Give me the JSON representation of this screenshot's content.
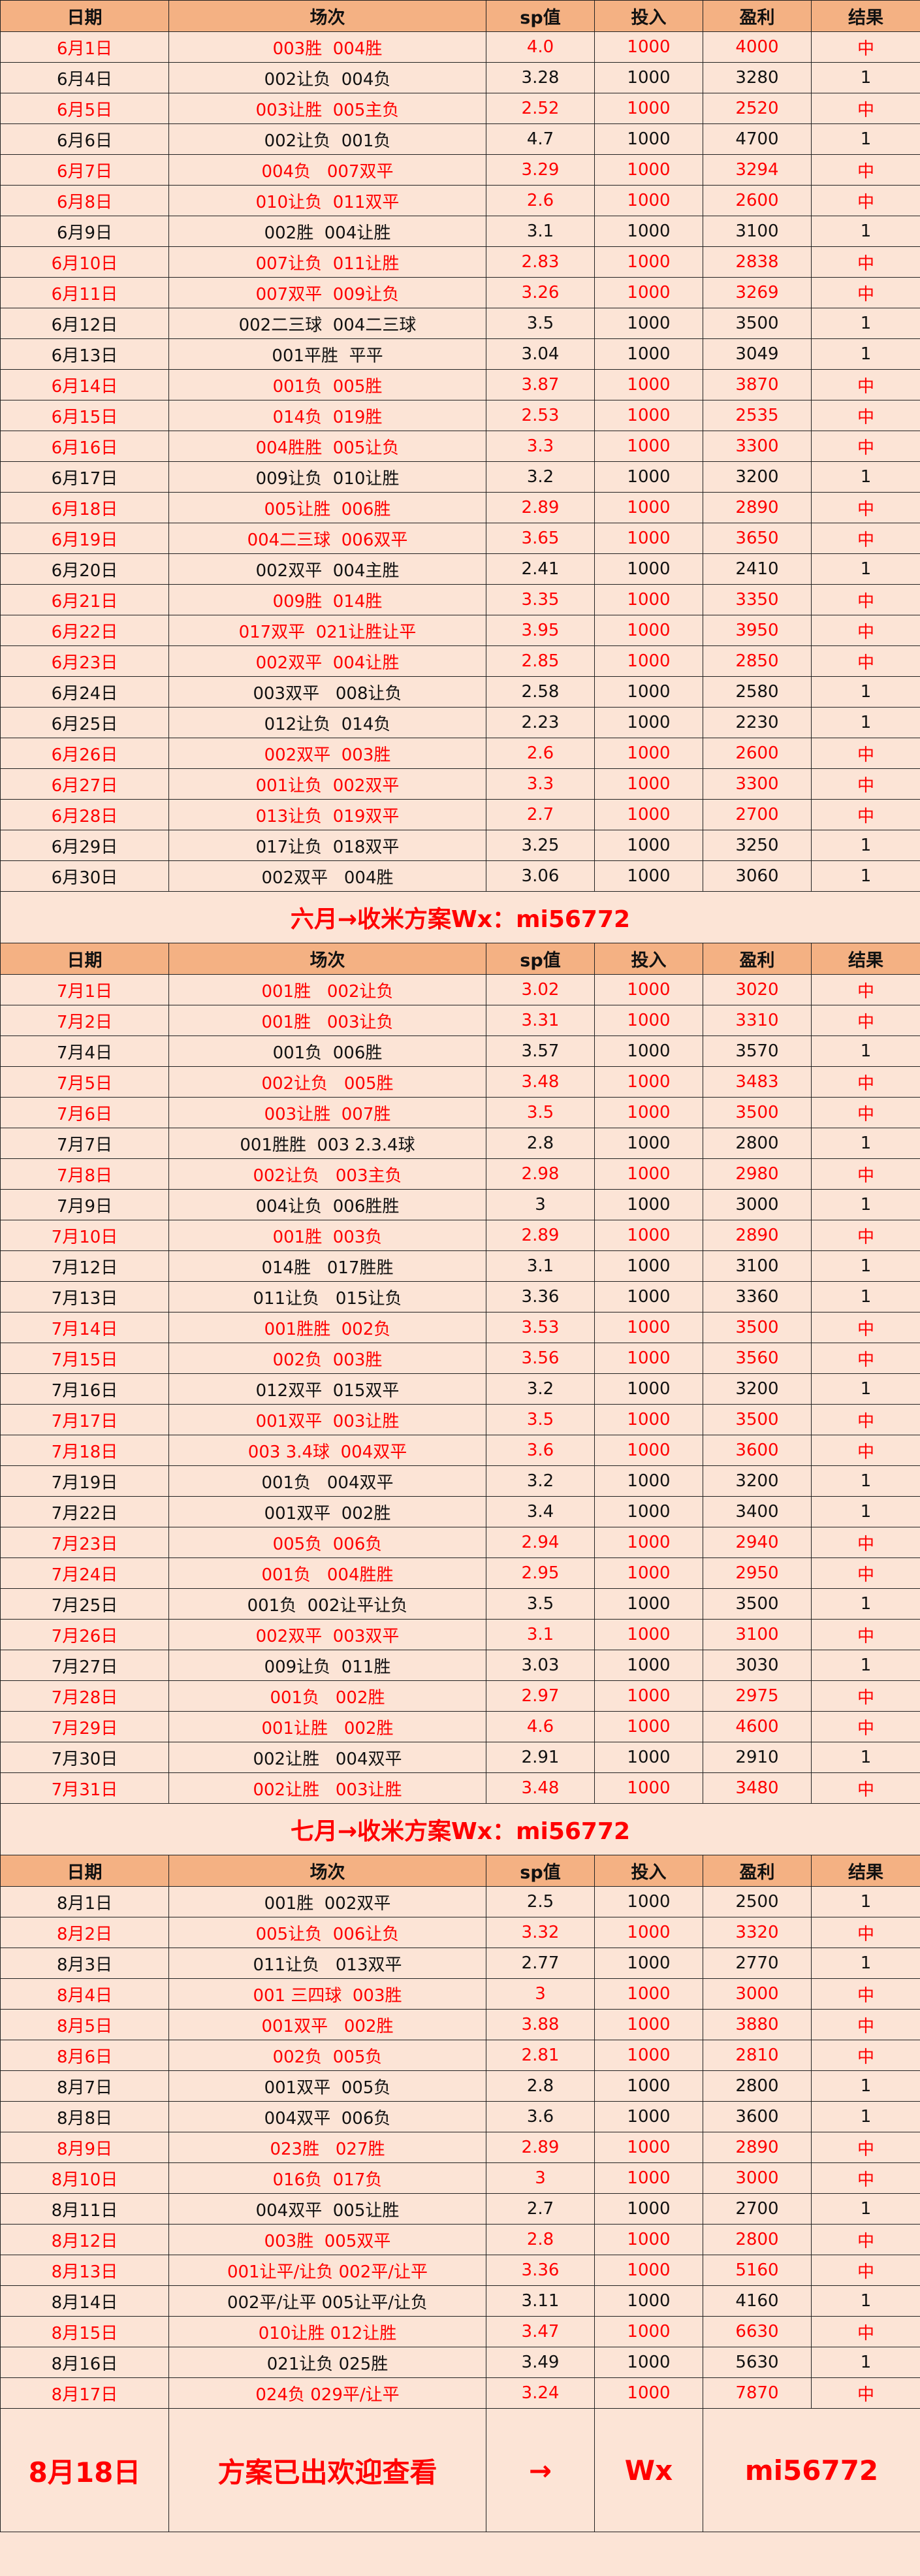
{
  "headers": [
    "日期",
    "场次",
    "sp值",
    "投入",
    "盈利",
    "结果"
  ],
  "colors": {
    "header_bg": "#f4b183",
    "body_bg": "#fce4d6",
    "hit_text": "#ff0000"
  },
  "sections": [
    {
      "rows": [
        [
          "6月1日",
          "003胜  004胜",
          "4.0",
          "1000",
          "4000",
          "中"
        ],
        [
          "6月4日",
          "002让负  004负",
          "3.28",
          "1000",
          "3280",
          "1"
        ],
        [
          "6月5日",
          "003让胜  005主负",
          "2.52",
          "1000",
          "2520",
          "中"
        ],
        [
          "6月6日",
          "002让负  001负",
          "4.7",
          "1000",
          "4700",
          "1"
        ],
        [
          "6月7日",
          "004负   007双平",
          "3.29",
          "1000",
          "3294",
          "中"
        ],
        [
          "6月8日",
          "010让负  011双平",
          "2.6",
          "1000",
          "2600",
          "中"
        ],
        [
          "6月9日",
          "002胜  004让胜",
          "3.1",
          "1000",
          "3100",
          "1"
        ],
        [
          "6月10日",
          "007让负  011让胜",
          "2.83",
          "1000",
          "2838",
          "中"
        ],
        [
          "6月11日",
          "007双平  009让负",
          "3.26",
          "1000",
          "3269",
          "中"
        ],
        [
          "6月12日",
          "002二三球  004二三球",
          "3.5",
          "1000",
          "3500",
          "1"
        ],
        [
          "6月13日",
          "001平胜  平平",
          "3.04",
          "1000",
          "3049",
          "1"
        ],
        [
          "6月14日",
          "001负  005胜",
          "3.87",
          "1000",
          "3870",
          "中"
        ],
        [
          "6月15日",
          "014负  019胜",
          "2.53",
          "1000",
          "2535",
          "中"
        ],
        [
          "6月16日",
          "004胜胜  005让负",
          "3.3",
          "1000",
          "3300",
          "中"
        ],
        [
          "6月17日",
          "009让负  010让胜",
          "3.2",
          "1000",
          "3200",
          "1"
        ],
        [
          "6月18日",
          "005让胜  006胜",
          "2.89",
          "1000",
          "2890",
          "中"
        ],
        [
          "6月19日",
          "004二三球  006双平",
          "3.65",
          "1000",
          "3650",
          "中"
        ],
        [
          "6月20日",
          "002双平  004主胜",
          "2.41",
          "1000",
          "2410",
          "1"
        ],
        [
          "6月21日",
          "009胜  014胜",
          "3.35",
          "1000",
          "3350",
          "中"
        ],
        [
          "6月22日",
          "017双平  021让胜让平",
          "3.95",
          "1000",
          "3950",
          "中"
        ],
        [
          "6月23日",
          "002双平  004让胜",
          "2.85",
          "1000",
          "2850",
          "中"
        ],
        [
          "6月24日",
          "003双平   008让负",
          "2.58",
          "1000",
          "2580",
          "1"
        ],
        [
          "6月25日",
          "012让负  014负",
          "2.23",
          "1000",
          "2230",
          "1"
        ],
        [
          "6月26日",
          "002双平  003胜",
          "2.6",
          "1000",
          "2600",
          "中"
        ],
        [
          "6月27日",
          "001让负  002双平",
          "3.3",
          "1000",
          "3300",
          "中"
        ],
        [
          "6月28日",
          "013让负  019双平",
          "2.7",
          "1000",
          "2700",
          "中"
        ],
        [
          "6月29日",
          "017让负  018双平",
          "3.25",
          "1000",
          "3250",
          "1"
        ],
        [
          "6月30日",
          "002双平   004胜",
          "3.06",
          "1000",
          "3060",
          "1"
        ]
      ],
      "banner": "六月→收米方案Wx：mi56772"
    },
    {
      "rows": [
        [
          "7月1日",
          "001胜   002让负",
          "3.02",
          "1000",
          "3020",
          "中"
        ],
        [
          "7月2日",
          "001胜   003让负",
          "3.31",
          "1000",
          "3310",
          "中"
        ],
        [
          "7月4日",
          "001负  006胜",
          "3.57",
          "1000",
          "3570",
          "1"
        ],
        [
          "7月5日",
          "002让负   005胜",
          "3.48",
          "1000",
          "3483",
          "中"
        ],
        [
          "7月6日",
          "003让胜  007胜",
          "3.5",
          "1000",
          "3500",
          "中"
        ],
        [
          "7月7日",
          "001胜胜  003 2.3.4球",
          "2.8",
          "1000",
          "2800",
          "1"
        ],
        [
          "7月8日",
          "002让负   003主负",
          "2.98",
          "1000",
          "2980",
          "中"
        ],
        [
          "7月9日",
          "004让负  006胜胜",
          "3",
          "1000",
          "3000",
          "1"
        ],
        [
          "7月10日",
          "001胜  003负",
          "2.89",
          "1000",
          "2890",
          "中"
        ],
        [
          "7月12日",
          "014胜   017胜胜",
          "3.1",
          "1000",
          "3100",
          "1"
        ],
        [
          "7月13日",
          "011让负   015让负",
          "3.36",
          "1000",
          "3360",
          "1"
        ],
        [
          "7月14日",
          "001胜胜  002负",
          "3.53",
          "1000",
          "3500",
          "中"
        ],
        [
          "7月15日",
          "002负  003胜",
          "3.56",
          "1000",
          "3560",
          "中"
        ],
        [
          "7月16日",
          "012双平  015双平",
          "3.2",
          "1000",
          "3200",
          "1"
        ],
        [
          "7月17日",
          "001双平  003让胜",
          "3.5",
          "1000",
          "3500",
          "中"
        ],
        [
          "7月18日",
          "003 3.4球  004双平",
          "3.6",
          "1000",
          "3600",
          "中"
        ],
        [
          "7月19日",
          "001负   004双平",
          "3.2",
          "1000",
          "3200",
          "1"
        ],
        [
          "7月22日",
          "001双平  002胜",
          "3.4",
          "1000",
          "3400",
          "1"
        ],
        [
          "7月23日",
          "005负  006负",
          "2.94",
          "1000",
          "2940",
          "中"
        ],
        [
          "7月24日",
          "001负   004胜胜",
          "2.95",
          "1000",
          "2950",
          "中"
        ],
        [
          "7月25日",
          "001负  002让平让负",
          "3.5",
          "1000",
          "3500",
          "1"
        ],
        [
          "7月26日",
          "002双平  003双平",
          "3.1",
          "1000",
          "3100",
          "中"
        ],
        [
          "7月27日",
          "009让负  011胜",
          "3.03",
          "1000",
          "3030",
          "1"
        ],
        [
          "7月28日",
          "001负   002胜",
          "2.97",
          "1000",
          "2975",
          "中"
        ],
        [
          "7月29日",
          "001让胜   002胜",
          "4.6",
          "1000",
          "4600",
          "中"
        ],
        [
          "7月30日",
          "002让胜   004双平",
          "2.91",
          "1000",
          "2910",
          "1"
        ],
        [
          "7月31日",
          "002让胜   003让胜",
          "3.48",
          "1000",
          "3480",
          "中"
        ]
      ],
      "banner": "七月→收米方案Wx：mi56772"
    },
    {
      "rows": [
        [
          "8月1日",
          "001胜  002双平",
          "2.5",
          "1000",
          "2500",
          "1"
        ],
        [
          "8月2日",
          "005让负  006让负",
          "3.32",
          "1000",
          "3320",
          "中"
        ],
        [
          "8月3日",
          "011让负   013双平",
          "2.77",
          "1000",
          "2770",
          "1"
        ],
        [
          "8月4日",
          "001 三四球  003胜",
          "3",
          "1000",
          "3000",
          "中"
        ],
        [
          "8月5日",
          "001双平   002胜",
          "3.88",
          "1000",
          "3880",
          "中"
        ],
        [
          "8月6日",
          "002负  005负",
          "2.81",
          "1000",
          "2810",
          "中"
        ],
        [
          "8月7日",
          "001双平  005负",
          "2.8",
          "1000",
          "2800",
          "1"
        ],
        [
          "8月8日",
          "004双平  006负",
          "3.6",
          "1000",
          "3600",
          "1"
        ],
        [
          "8月9日",
          "023胜   027胜",
          "2.89",
          "1000",
          "2890",
          "中"
        ],
        [
          "8月10日",
          "016负  017负",
          "3",
          "1000",
          "3000",
          "中"
        ],
        [
          "8月11日",
          "004双平  005让胜",
          "2.7",
          "1000",
          "2700",
          "1"
        ],
        [
          "8月12日",
          "003胜  005双平",
          "2.8",
          "1000",
          "2800",
          "中"
        ],
        [
          "8月13日",
          "001让平/让负 002平/让平",
          "3.36",
          "1000",
          "5160",
          "中"
        ],
        [
          "8月14日",
          "002平/让平 005让平/让负",
          "3.11",
          "1000",
          "4160",
          "1"
        ],
        [
          "8月15日",
          "010让胜 012让胜",
          "3.47",
          "1000",
          "6630",
          "中"
        ],
        [
          "8月16日",
          "021让负 025胜",
          "3.49",
          "1000",
          "5630",
          "1"
        ],
        [
          "8月17日",
          "024负 029平/让平",
          "3.24",
          "1000",
          "7870",
          "中"
        ]
      ]
    }
  ],
  "final_row": [
    "8月18日",
    "方案已出欢迎查看",
    "→",
    "Wx",
    "mi56772"
  ]
}
